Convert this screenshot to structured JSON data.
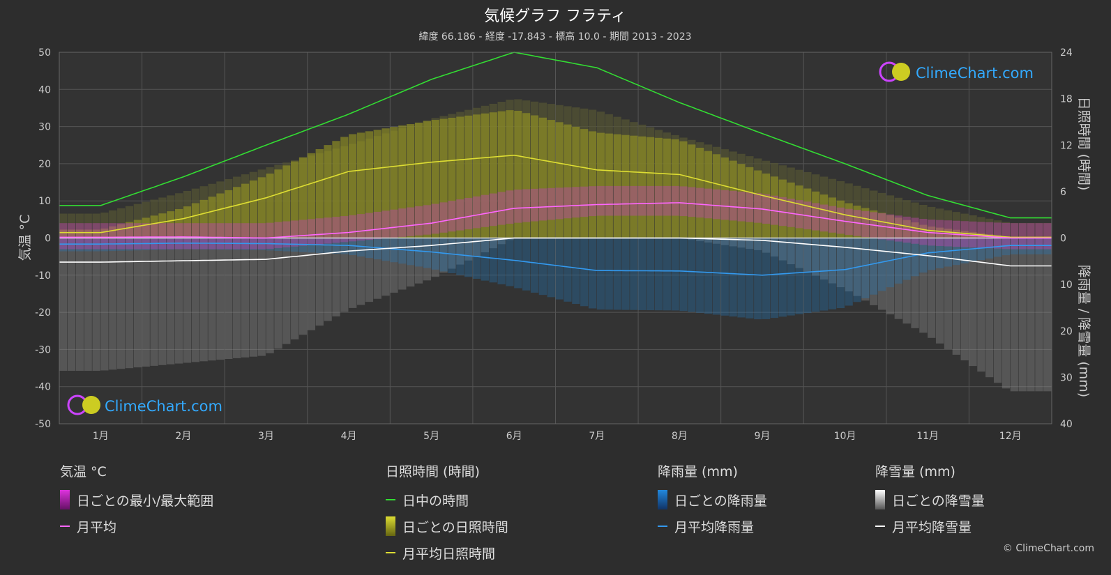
{
  "chart_data": {
    "type": "area",
    "title": "気候グラフ フラティ",
    "subtitle": "緯度 66.186 - 経度 -17.843 - 標高 10.0 - 期間 2013 - 2023",
    "x_categories": [
      "1月",
      "2月",
      "3月",
      "4月",
      "5月",
      "6月",
      "7月",
      "8月",
      "9月",
      "10月",
      "11月",
      "12月"
    ],
    "y_left": {
      "label": "気温 °C",
      "range": [
        -50,
        50
      ],
      "ticks": [
        50,
        40,
        30,
        20,
        10,
        0,
        -10,
        -20,
        -30,
        -40,
        -50
      ]
    },
    "y_right_top": {
      "label": "日照時間 (時間)",
      "range": [
        0,
        24
      ],
      "ticks": [
        24,
        18,
        12,
        6,
        0
      ]
    },
    "y_right_bottom": {
      "label": "降雨量 / 降雪量 (mm)",
      "range": [
        0,
        40
      ],
      "ticks": [
        10,
        20,
        30,
        40
      ]
    },
    "grid": true,
    "series": [
      {
        "name": "日中の時間",
        "color": "#33dd33",
        "values": [
          4.2,
          7.9,
          12.0,
          16.0,
          20.5,
          24.0,
          22.0,
          17.5,
          13.5,
          9.6,
          5.5,
          2.6
        ]
      },
      {
        "name": "月平均日照時間",
        "color": "#dddd33",
        "values": [
          0.7,
          2.5,
          5.2,
          8.6,
          9.8,
          10.7,
          8.8,
          8.2,
          5.5,
          3.0,
          1.0,
          0.1
        ]
      },
      {
        "name": "月平均",
        "color": "#ff66ff",
        "values": [
          0.2,
          0.3,
          0.0,
          1.5,
          4.0,
          8.0,
          9.0,
          9.5,
          7.8,
          4.5,
          1.5,
          0.0
        ]
      },
      {
        "name": "月平均降雨量",
        "color": "#3399ee",
        "values": [
          1.3,
          1.1,
          1.2,
          1.6,
          3.0,
          4.8,
          7.0,
          7.1,
          8.0,
          6.8,
          3.2,
          1.6
        ]
      },
      {
        "name": "月平均降雪量",
        "color": "#ffffff",
        "values": [
          5.2,
          4.9,
          4.6,
          2.8,
          1.6,
          0.0,
          0.0,
          0.0,
          0.5,
          2.0,
          3.8,
          6.0
        ]
      }
    ],
    "temp_range_min": [
      -3,
      -3,
      -3,
      -1,
      1,
      4,
      6,
      6,
      4,
      1,
      -2,
      -3
    ],
    "temp_range_max": [
      4,
      4,
      4,
      6,
      9,
      13,
      14,
      14,
      12,
      8,
      5,
      4
    ]
  },
  "logo": {
    "text": "ClimeChart.com"
  },
  "legend": {
    "groups": [
      {
        "title": "気温 °C",
        "items": [
          {
            "label": "日ごとの最小/最大範囲",
            "color": "#dd33dd",
            "kind": "box"
          },
          {
            "label": "月平均",
            "color": "#ff66ff",
            "kind": "line"
          }
        ]
      },
      {
        "title": "日照時間 (時間)",
        "items": [
          {
            "label": "日中の時間",
            "color": "#33dd33",
            "kind": "line"
          },
          {
            "label": "日ごとの日照時間",
            "color": "#cccc22",
            "kind": "box"
          },
          {
            "label": "月平均日照時間",
            "color": "#dddd33",
            "kind": "line"
          }
        ]
      },
      {
        "title": "降雨量 (mm)",
        "items": [
          {
            "label": "日ごとの降雨量",
            "color": "#2288dd",
            "kind": "box"
          },
          {
            "label": "月平均降雨量",
            "color": "#3399ee",
            "kind": "line"
          }
        ]
      },
      {
        "title": "降雪量 (mm)",
        "items": [
          {
            "label": "日ごとの降雪量",
            "color": "#dddddd",
            "kind": "box"
          },
          {
            "label": "月平均降雪量",
            "color": "#ffffff",
            "kind": "line"
          }
        ]
      }
    ]
  },
  "copyright": "© ClimeChart.com"
}
